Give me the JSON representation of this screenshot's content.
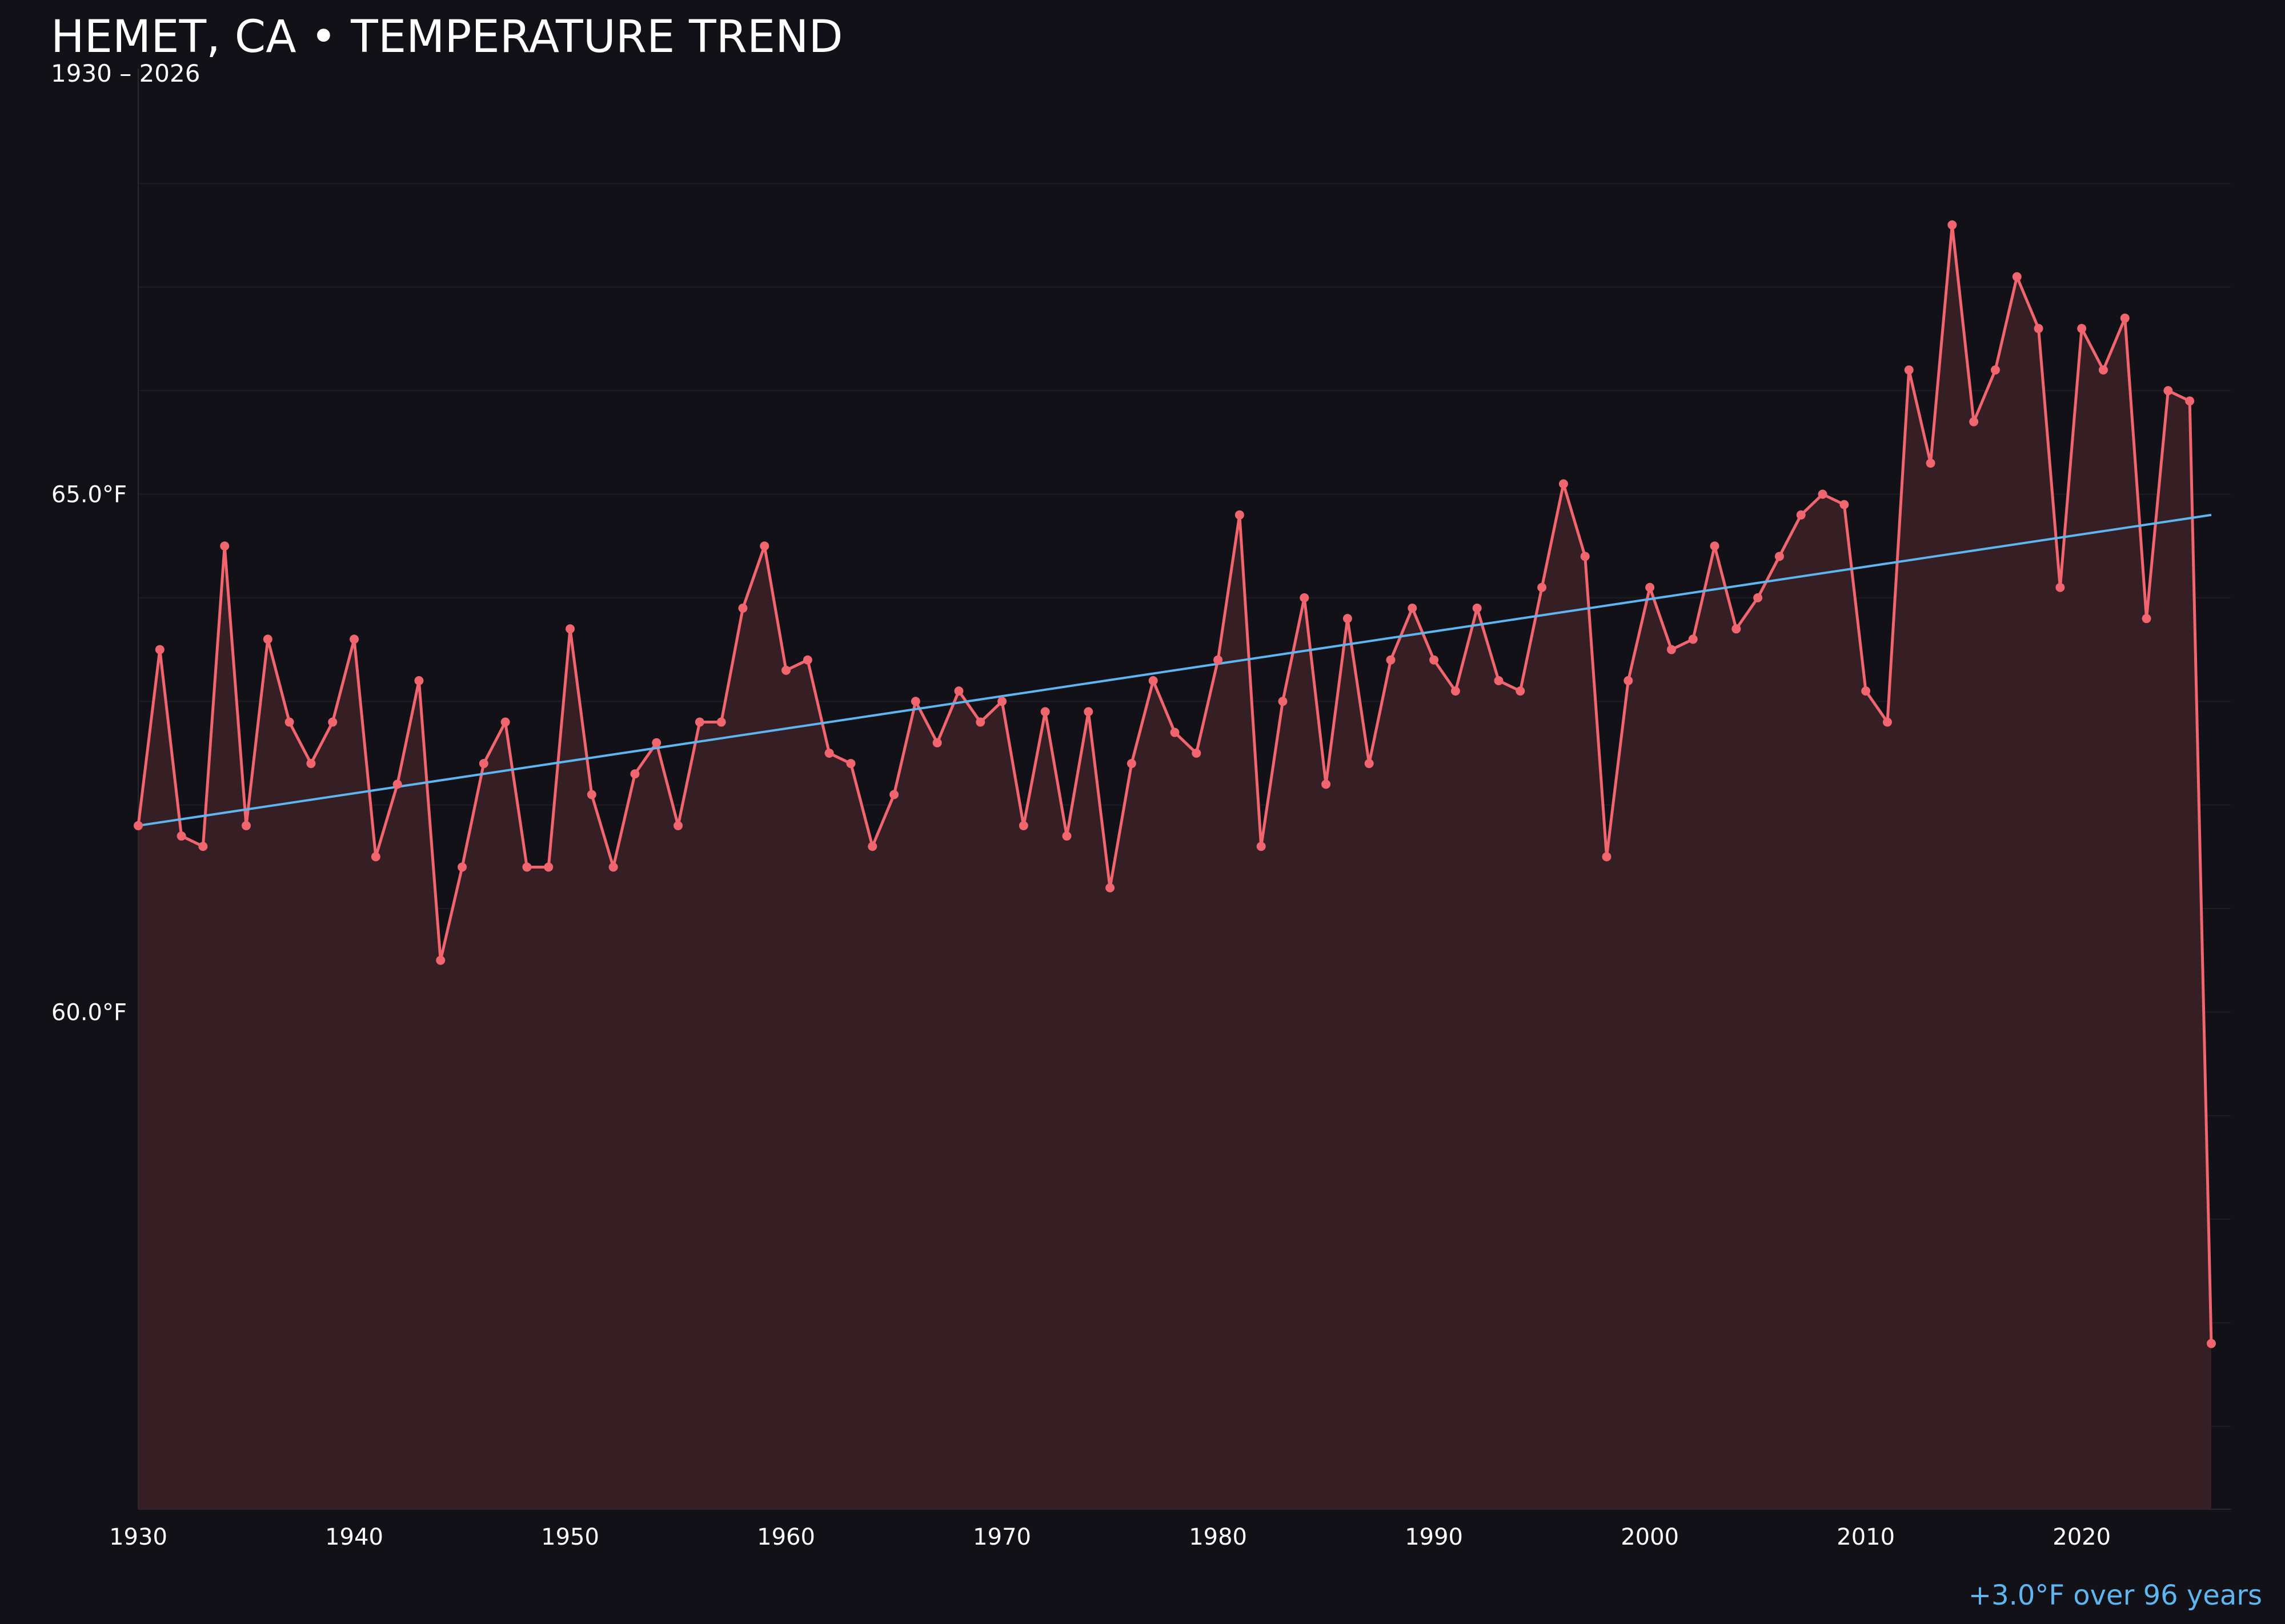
{
  "title": "HEMET, CA • TEMPERATURE TREND",
  "subtitle": "1930 – 2026",
  "trend_note": "+3.0°F over 96 years",
  "colors": {
    "background": "#121117",
    "line": "#f0656e",
    "fill": "#361e25",
    "trend": "#5eb6f0",
    "grid": "#1e1d24",
    "text": "#ffffff"
  },
  "chart_data": {
    "type": "line",
    "title": "HEMET, CA • TEMPERATURE TREND",
    "subtitle": "1930 – 2026",
    "x_ticks": [
      1930,
      1940,
      1950,
      1960,
      1970,
      1980,
      1990,
      2000,
      2010,
      2020
    ],
    "y_ticks": [
      {
        "value": 60.0,
        "label": "60.0°F"
      },
      {
        "value": 65.0,
        "label": "65.0°F"
      }
    ],
    "xlim": [
      1930,
      2026.9
    ],
    "ylim": [
      55.2,
      69.0
    ],
    "grid": true,
    "series": [
      {
        "x": [
          1930,
          1931,
          1932,
          1933,
          1934,
          1935,
          1936,
          1937,
          1938,
          1939,
          1940,
          1941,
          1942,
          1943,
          1944,
          1945,
          1946,
          1947,
          1948,
          1949,
          1950,
          1951,
          1952,
          1953,
          1954,
          1955,
          1956,
          1957,
          1958,
          1959,
          1960,
          1961,
          1962,
          1963,
          1964,
          1965,
          1966,
          1967,
          1968,
          1969,
          1970,
          1971,
          1972,
          1973,
          1974,
          1975,
          1976,
          1977,
          1978,
          1979,
          1980,
          1981,
          1982,
          1983,
          1984,
          1985,
          1986,
          1987,
          1988,
          1989,
          1990,
          1991,
          1992,
          1993,
          1994,
          1995,
          1996,
          1997,
          1998,
          1999,
          2000,
          2001,
          2002,
          2003,
          2004,
          2005,
          2006,
          2007,
          2008,
          2009,
          2010,
          2011,
          2012,
          2013,
          2014,
          2015,
          2016,
          2017,
          2018,
          2019,
          2020,
          2021,
          2022,
          2023,
          2024,
          2025,
          2026
        ],
        "values": [
          61.8,
          63.5,
          61.7,
          61.6,
          64.5,
          61.8,
          63.6,
          62.8,
          62.4,
          62.8,
          63.6,
          61.5,
          62.2,
          63.2,
          60.5,
          61.4,
          62.4,
          62.8,
          61.4,
          61.4,
          63.7,
          62.1,
          61.4,
          62.3,
          62.6,
          61.8,
          62.8,
          62.8,
          63.9,
          64.5,
          63.3,
          63.4,
          62.5,
          62.4,
          61.6,
          62.1,
          63.0,
          62.6,
          63.1,
          62.8,
          63.0,
          61.8,
          62.9,
          61.7,
          62.9,
          61.2,
          62.4,
          63.2,
          62.7,
          62.5,
          63.4,
          64.8,
          61.6,
          63.0,
          64.0,
          62.2,
          63.8,
          62.4,
          63.4,
          63.9,
          63.4,
          63.1,
          63.9,
          63.2,
          63.1,
          64.1,
          65.1,
          64.4,
          61.5,
          63.2,
          64.1,
          63.5,
          63.6,
          64.5,
          63.7,
          64.0,
          64.4,
          64.8,
          65.0,
          64.9,
          63.1,
          62.8,
          66.2,
          65.3,
          67.6,
          65.7,
          66.2,
          67.1,
          66.6,
          64.1,
          66.6,
          66.2,
          66.7,
          63.8,
          66.0,
          65.9,
          56.8
        ]
      }
    ],
    "trend": {
      "start_year": 1930,
      "start_value": 61.8,
      "end_year": 2026,
      "end_value": 64.8
    }
  }
}
